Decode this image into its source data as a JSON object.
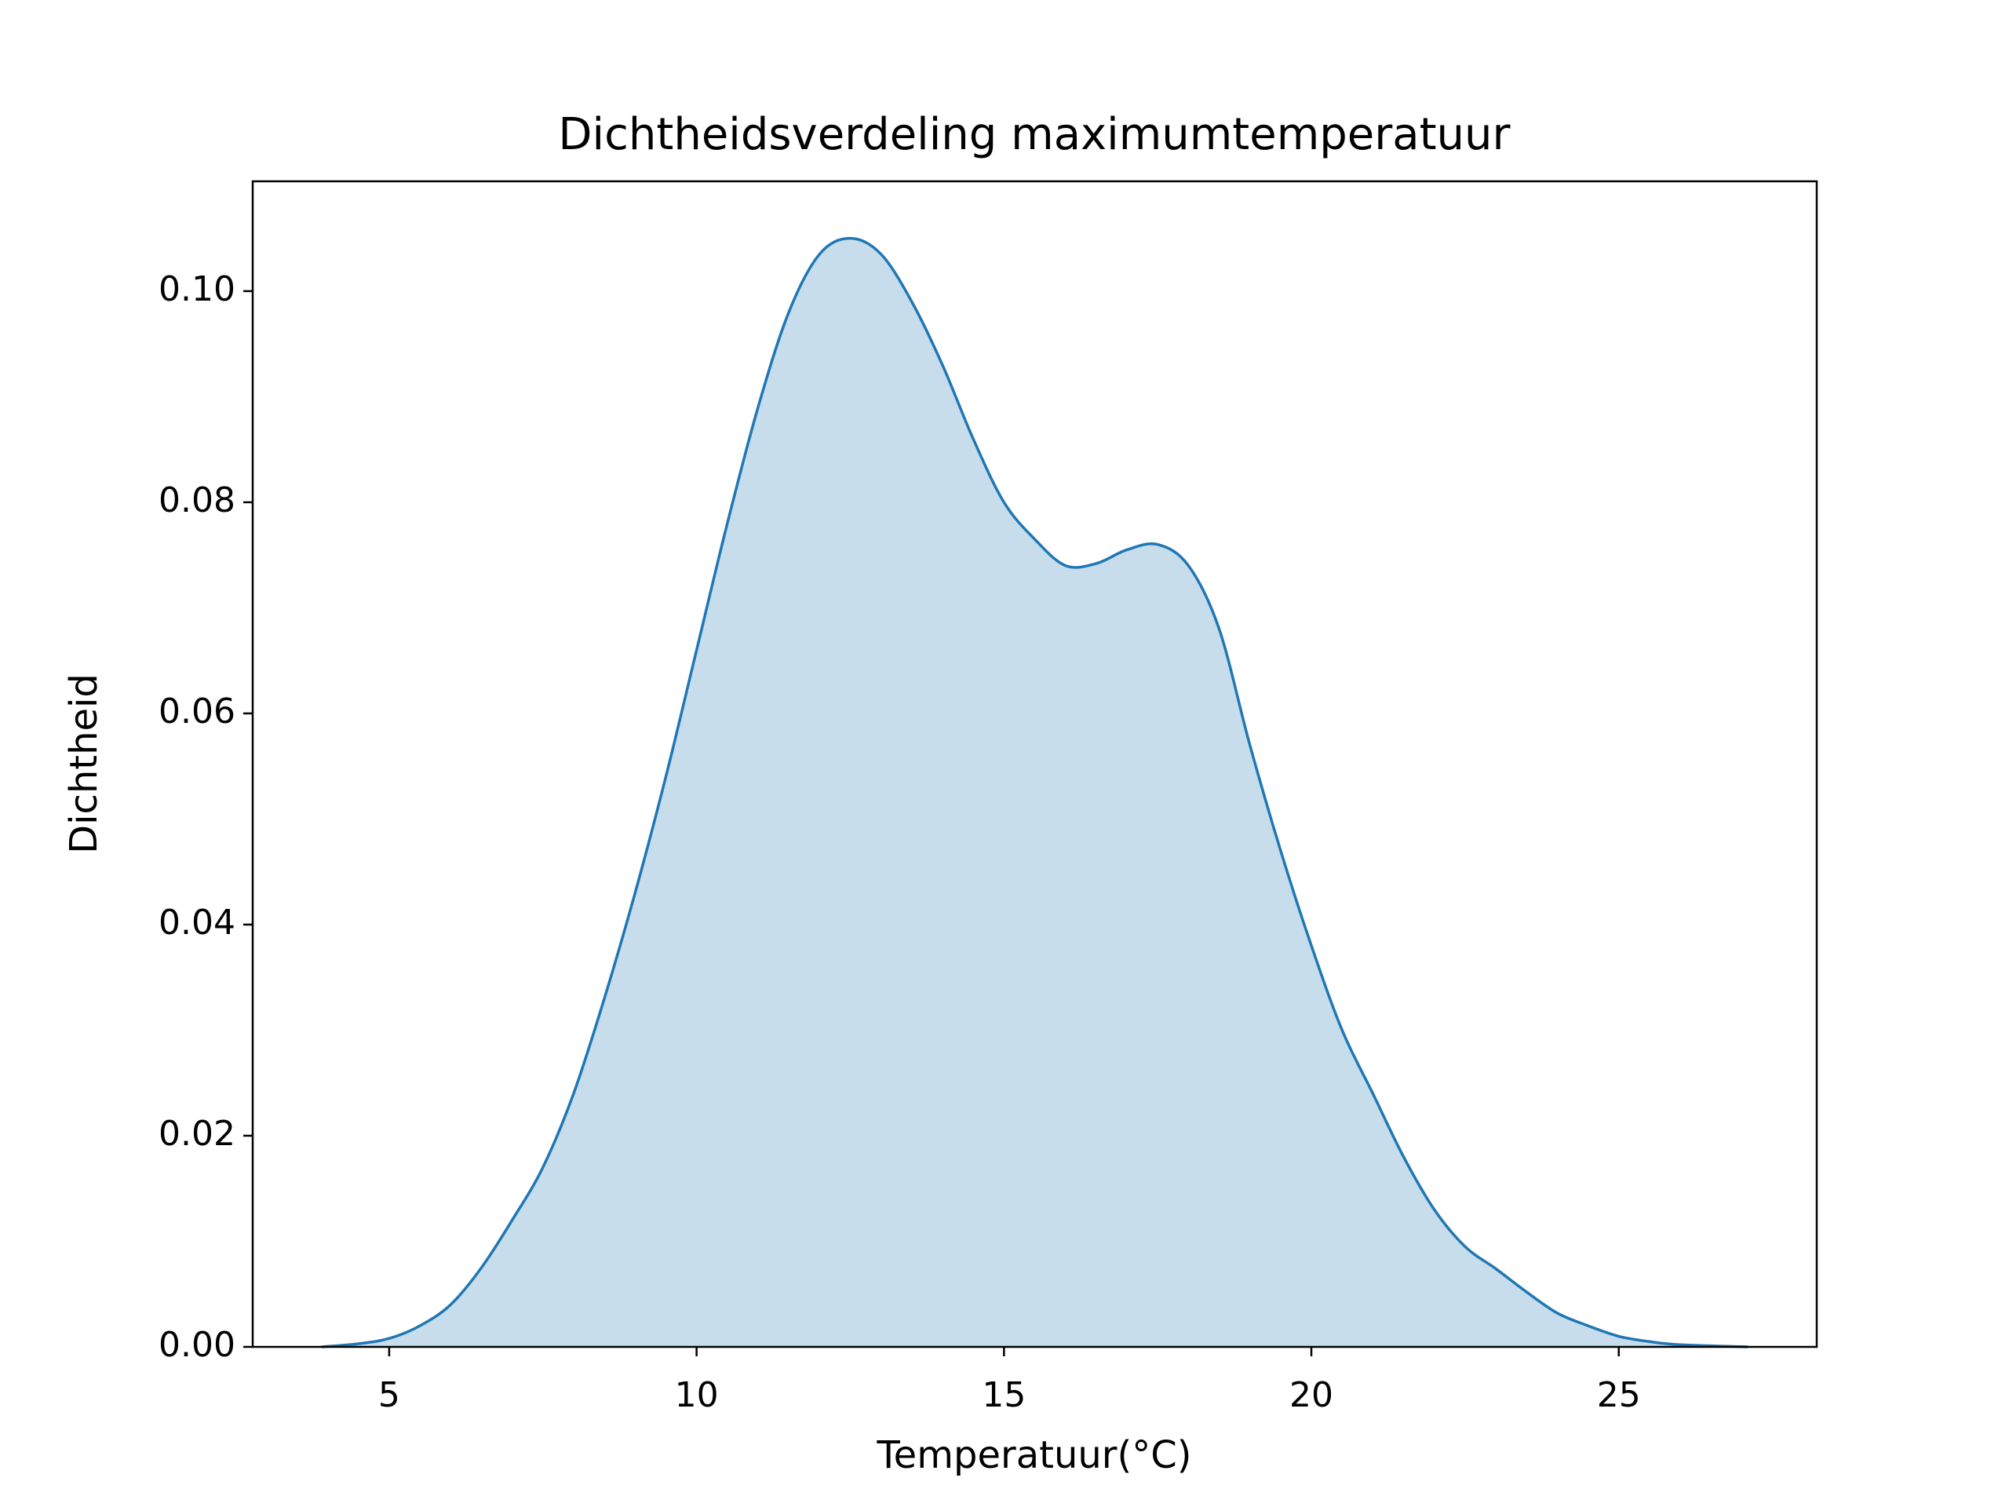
{
  "chart_data": {
    "type": "kde",
    "title": "Dichtheidsverdeling maximumtemperatuur",
    "xlabel": "Temperatuur(°C)",
    "ylabel": "Dichtheid",
    "color": "#1f77b4",
    "fill_opacity": 0.25,
    "x": [
      3.9,
      4.5,
      5,
      5.5,
      6,
      6.5,
      7,
      7.5,
      8,
      8.5,
      9,
      9.5,
      10,
      10.5,
      11,
      11.5,
      12,
      12.5,
      13,
      13.5,
      14,
      14.5,
      15,
      15.5,
      16,
      16.5,
      17,
      17.5,
      18,
      18.5,
      19,
      19.5,
      20,
      20.5,
      21,
      21.5,
      22,
      22.5,
      23,
      23.5,
      24,
      24.5,
      25,
      25.5,
      26,
      27.1
    ],
    "values": [
      0,
      0.0003,
      0.0008,
      0.002,
      0.004,
      0.0075,
      0.012,
      0.017,
      0.024,
      0.033,
      0.043,
      0.054,
      0.066,
      0.078,
      0.089,
      0.098,
      0.1035,
      0.105,
      0.1035,
      0.099,
      0.093,
      0.086,
      0.08,
      0.0765,
      0.074,
      0.0742,
      0.0755,
      0.076,
      0.074,
      0.068,
      0.057,
      0.047,
      0.038,
      0.03,
      0.024,
      0.018,
      0.013,
      0.0095,
      0.0074,
      0.0052,
      0.0032,
      0.002,
      0.001,
      0.0005,
      0.0002,
      0
    ],
    "xlim": [
      2.78,
      28.22
    ],
    "xticks": [
      5,
      10,
      15,
      20,
      25
    ],
    "ylim": [
      0,
      0.1104
    ],
    "yticks": [
      {
        "value": 0,
        "label": "0.00"
      },
      {
        "value": 0.02,
        "label": "0.02"
      },
      {
        "value": 0.04,
        "label": "0.04"
      },
      {
        "value": 0.06,
        "label": "0.06"
      },
      {
        "value": 0.08,
        "label": "0.08"
      },
      {
        "value": 0.1,
        "label": "0.10"
      }
    ]
  }
}
